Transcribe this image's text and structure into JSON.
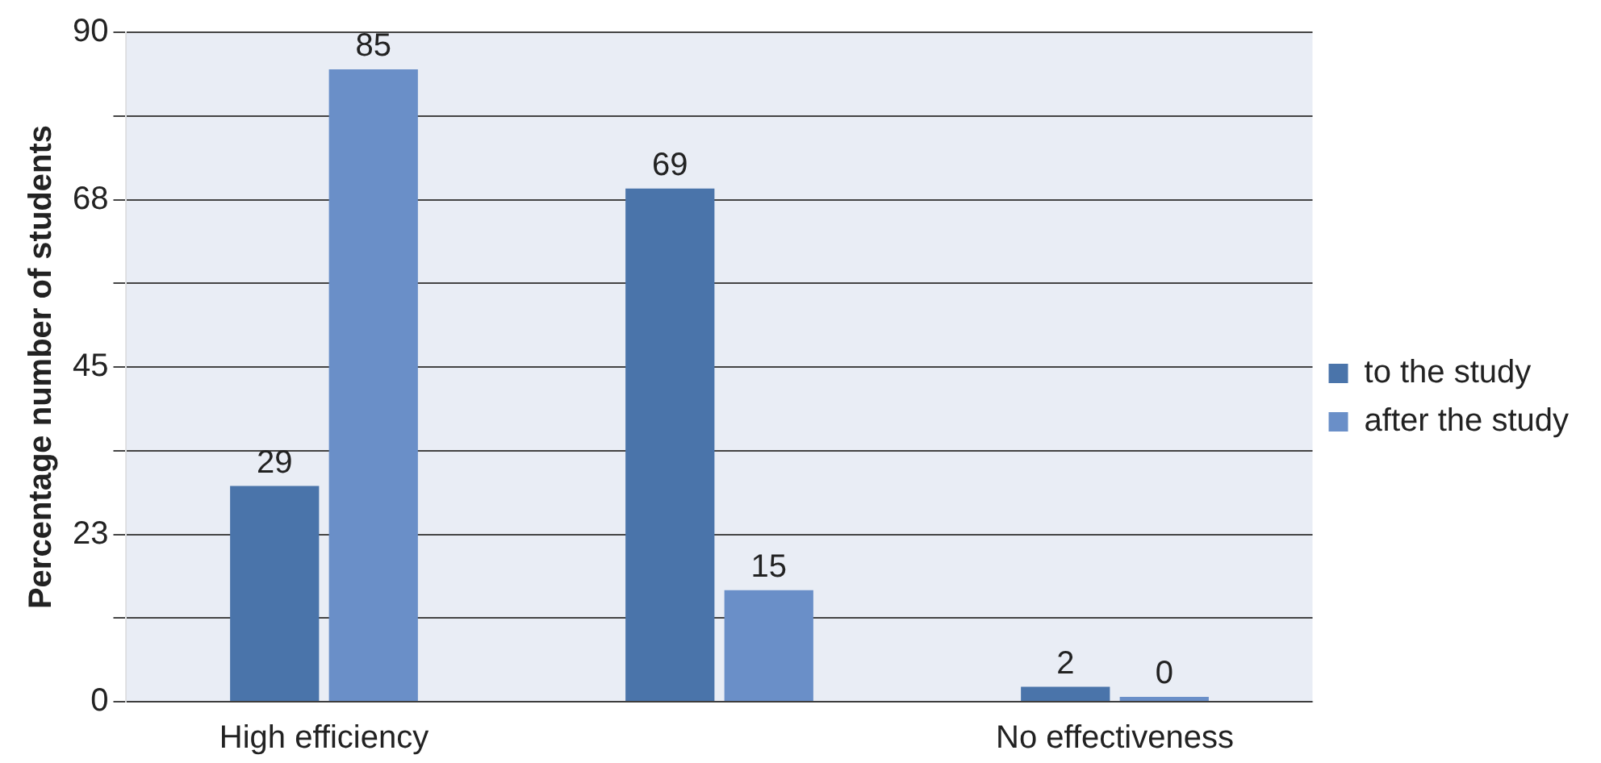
{
  "chart_data": {
    "type": "bar",
    "ylabel": "Percentage number of students",
    "categories": [
      "High efficiency",
      null,
      "No effectiveness"
    ],
    "series": [
      {
        "name": "to the study",
        "color": "#4a74aa",
        "values": [
          29,
          69,
          2
        ]
      },
      {
        "name": "after the study",
        "color": "#6a8fc8",
        "values": [
          85,
          15,
          0
        ]
      }
    ],
    "ylim": [
      0,
      90
    ],
    "yticks": [
      0,
      {
        "value": 11.25,
        "label": null
      },
      {
        "value": 22.5,
        "label": "23"
      },
      {
        "value": 33.75,
        "label": null
      },
      45,
      {
        "value": 56.25,
        "label": null
      },
      {
        "value": 67.5,
        "label": "68"
      },
      {
        "value": 78.75,
        "label": null
      },
      90
    ],
    "grid": "y",
    "legend": "right",
    "data_labels": true
  }
}
